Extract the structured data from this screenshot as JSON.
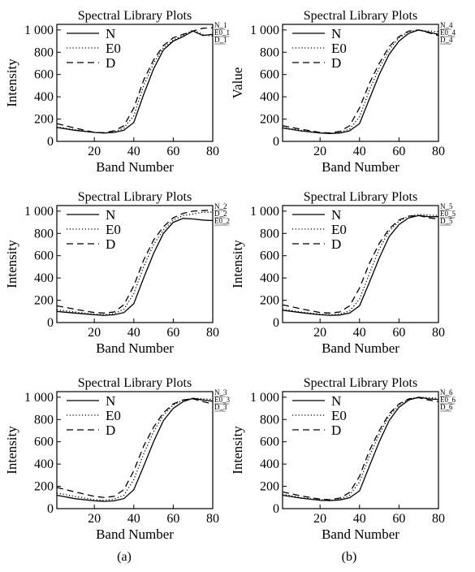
{
  "captions": [
    "(a)",
    "(b)"
  ],
  "chart_data": [
    {
      "type": "line",
      "title": "Spectral Library Plots",
      "xlabel": "Band Number",
      "ylabel": "Intensity",
      "xlim": [
        1,
        80
      ],
      "ylim": [
        0,
        1050
      ],
      "xticks": [
        20,
        40,
        60,
        80
      ],
      "yticks": [
        0,
        200,
        400,
        600,
        800,
        1000
      ],
      "ytick_labels": [
        "0",
        "200",
        "400",
        "600",
        "800",
        "1 000"
      ],
      "legend_position": "top-left",
      "end_labels": [
        "N_1",
        "E0_1",
        "D_1"
      ],
      "x": [
        1,
        10,
        20,
        25,
        30,
        35,
        40,
        45,
        50,
        55,
        60,
        65,
        70,
        75,
        80
      ],
      "series": [
        {
          "name": "N",
          "style": "solid",
          "values": [
            125,
            100,
            80,
            75,
            80,
            100,
            170,
            420,
            650,
            820,
            900,
            940,
            990,
            950,
            960
          ]
        },
        {
          "name": "E0",
          "style": "dotted",
          "values": [
            130,
            105,
            80,
            75,
            85,
            120,
            230,
            500,
            700,
            840,
            910,
            950,
            1000,
            960,
            945
          ]
        },
        {
          "name": "D",
          "style": "dashed",
          "values": [
            160,
            120,
            80,
            78,
            95,
            140,
            300,
            550,
            730,
            860,
            930,
            960,
            990,
            1015,
            1020
          ]
        }
      ]
    },
    {
      "type": "line",
      "title": "Spectral Library Plots",
      "xlabel": "Band Number",
      "ylabel": "Value",
      "xlim": [
        1,
        80
      ],
      "ylim": [
        0,
        1050
      ],
      "xticks": [
        20,
        40,
        60,
        80
      ],
      "yticks": [
        0,
        200,
        400,
        600,
        800,
        1000
      ],
      "ytick_labels": [
        "0",
        "200",
        "400",
        "600",
        "800",
        "1 000"
      ],
      "legend_position": "top-left",
      "end_labels": [
        "N_4",
        "E0_4",
        "D_4"
      ],
      "x": [
        1,
        10,
        20,
        25,
        30,
        35,
        40,
        45,
        50,
        55,
        60,
        65,
        70,
        75,
        80
      ],
      "series": [
        {
          "name": "N",
          "style": "solid",
          "values": [
            120,
            95,
            75,
            70,
            75,
            95,
            160,
            380,
            600,
            780,
            900,
            970,
            1000,
            980,
            960
          ]
        },
        {
          "name": "E0",
          "style": "dotted",
          "values": [
            125,
            100,
            78,
            72,
            80,
            110,
            220,
            460,
            660,
            820,
            930,
            985,
            1000,
            990,
            985
          ]
        },
        {
          "name": "D",
          "style": "dashed",
          "values": [
            140,
            110,
            80,
            75,
            90,
            140,
            300,
            520,
            700,
            850,
            940,
            990,
            1000,
            975,
            950
          ]
        }
      ]
    },
    {
      "type": "line",
      "title": "Spectral Library Plots",
      "xlabel": "Band Number",
      "ylabel": "Intensity",
      "xlim": [
        1,
        80
      ],
      "ylim": [
        0,
        1050
      ],
      "xticks": [
        20,
        40,
        60,
        80
      ],
      "yticks": [
        0,
        200,
        400,
        600,
        800,
        1000
      ],
      "ytick_labels": [
        "0",
        "200",
        "400",
        "600",
        "800",
        "1 000"
      ],
      "legend_position": "top-left",
      "end_labels": [
        "N_2",
        "D_2",
        "E0_2"
      ],
      "x": [
        1,
        10,
        20,
        25,
        30,
        35,
        40,
        45,
        50,
        55,
        60,
        65,
        70,
        75,
        80
      ],
      "series": [
        {
          "name": "N",
          "style": "solid",
          "values": [
            100,
            85,
            70,
            65,
            70,
            90,
            170,
            400,
            620,
            800,
            900,
            935,
            930,
            920,
            915
          ]
        },
        {
          "name": "E0",
          "style": "dotted",
          "values": [
            115,
            95,
            75,
            70,
            80,
            120,
            260,
            500,
            700,
            830,
            920,
            960,
            975,
            990,
            990
          ]
        },
        {
          "name": "D",
          "style": "dashed",
          "values": [
            150,
            120,
            90,
            85,
            95,
            160,
            330,
            560,
            740,
            860,
            940,
            980,
            1000,
            1005,
            1010
          ]
        }
      ]
    },
    {
      "type": "line",
      "title": "Spectral Library Plots",
      "xlabel": "Band Number",
      "ylabel": "Intensity",
      "xlim": [
        1,
        80
      ],
      "ylim": [
        0,
        1050
      ],
      "xticks": [
        20,
        40,
        60,
        80
      ],
      "yticks": [
        0,
        200,
        400,
        600,
        800,
        1000
      ],
      "ytick_labels": [
        "0",
        "200",
        "400",
        "600",
        "800",
        "1 000"
      ],
      "legend_position": "top-left",
      "end_labels": [
        "N_5",
        "E0_5",
        "D_5"
      ],
      "x": [
        1,
        10,
        20,
        25,
        30,
        35,
        40,
        45,
        50,
        55,
        60,
        65,
        70,
        75,
        80
      ],
      "series": [
        {
          "name": "N",
          "style": "solid",
          "values": [
            110,
            90,
            70,
            65,
            68,
            85,
            150,
            360,
            580,
            770,
            880,
            940,
            960,
            950,
            950
          ]
        },
        {
          "name": "E0",
          "style": "dotted",
          "values": [
            120,
            95,
            75,
            70,
            75,
            105,
            210,
            440,
            660,
            820,
            910,
            955,
            970,
            965,
            960
          ]
        },
        {
          "name": "D",
          "style": "dashed",
          "values": [
            160,
            125,
            90,
            85,
            95,
            150,
            310,
            530,
            710,
            840,
            920,
            955,
            960,
            940,
            930
          ]
        }
      ]
    },
    {
      "type": "line",
      "title": "Spectral Library Plots",
      "xlabel": "Band Number",
      "ylabel": "Intensity",
      "xlim": [
        1,
        80
      ],
      "ylim": [
        0,
        1050
      ],
      "xticks": [
        20,
        40,
        60,
        80
      ],
      "yticks": [
        0,
        200,
        400,
        600,
        800,
        1000
      ],
      "ytick_labels": [
        "0",
        "200",
        "400",
        "600",
        "800",
        "1 000"
      ],
      "legend_position": "top-left",
      "end_labels": [
        "N_3",
        "E0_3",
        "D_3"
      ],
      "x": [
        1,
        10,
        20,
        25,
        30,
        35,
        40,
        45,
        50,
        55,
        60,
        65,
        70,
        75,
        80
      ],
      "series": [
        {
          "name": "N",
          "style": "solid",
          "values": [
            120,
            90,
            70,
            65,
            70,
            90,
            170,
            380,
            600,
            790,
            900,
            960,
            990,
            975,
            965
          ]
        },
        {
          "name": "E0",
          "style": "dotted",
          "values": [
            140,
            110,
            80,
            75,
            85,
            120,
            260,
            490,
            690,
            840,
            930,
            975,
            990,
            985,
            980
          ]
        },
        {
          "name": "D",
          "style": "dashed",
          "values": [
            190,
            150,
            110,
            100,
            110,
            170,
            340,
            560,
            730,
            860,
            940,
            975,
            985,
            960,
            940
          ]
        }
      ]
    },
    {
      "type": "line",
      "title": "Spectral Library Plots",
      "xlabel": "Band Number",
      "ylabel": "Intensity",
      "xlim": [
        1,
        80
      ],
      "ylim": [
        0,
        1050
      ],
      "xticks": [
        20,
        40,
        60,
        80
      ],
      "yticks": [
        0,
        200,
        400,
        600,
        800,
        1000
      ],
      "ytick_labels": [
        "0",
        "200",
        "400",
        "600",
        "800",
        "1 000"
      ],
      "legend_position": "top-left",
      "end_labels": [
        "N_6",
        "E0_6",
        "D_6"
      ],
      "x": [
        1,
        10,
        20,
        25,
        30,
        35,
        40,
        45,
        50,
        55,
        60,
        65,
        70,
        75,
        80
      ],
      "series": [
        {
          "name": "N",
          "style": "solid",
          "values": [
            120,
            95,
            75,
            72,
            78,
            98,
            160,
            380,
            600,
            790,
            910,
            975,
            1000,
            985,
            980
          ]
        },
        {
          "name": "E0",
          "style": "dotted",
          "values": [
            130,
            100,
            78,
            75,
            85,
            120,
            240,
            470,
            670,
            830,
            930,
            985,
            1000,
            995,
            990
          ]
        },
        {
          "name": "D",
          "style": "dashed",
          "values": [
            150,
            115,
            85,
            80,
            95,
            145,
            290,
            520,
            700,
            850,
            940,
            985,
            995,
            975,
            960
          ]
        }
      ]
    }
  ]
}
